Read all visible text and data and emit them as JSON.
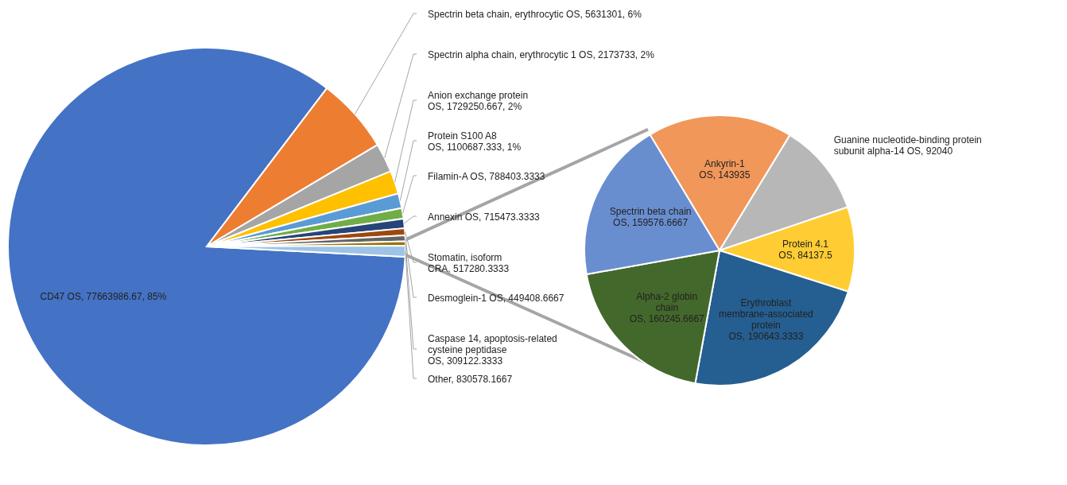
{
  "chart_data": [
    {
      "type": "pie",
      "categories": [
        "CD47 OS",
        "Spectrin beta chain, erythrocytic OS",
        "Spectrin alpha chain, erythrocytic 1 OS",
        "Anion exchange protein OS",
        "Protein S100 A8 OS",
        "Filamin-A OS",
        "Annexin OS",
        "Stomatin, isoform CRA",
        "Desmoglein-1 OS",
        "Caspase 14, apoptosis-related cysteine peptidase OS",
        "Other"
      ],
      "values": [
        77663986.67,
        5631301,
        2173733,
        1729250.667,
        1100687.333,
        788403.3333,
        715473.3333,
        517280.3333,
        449408.6667,
        309122.3333,
        830578.1667
      ],
      "value_labels": [
        "77663986.67, 85%",
        "5631301, 6%",
        "2173733, 2%",
        "1729250.667, 2%",
        "1100687.333, 1%",
        "788403.3333",
        "715473.3333",
        "517280.3333",
        "449408.6667",
        "309122.3333",
        "830578.1667"
      ],
      "colors": [
        "#4472c4",
        "#ed7d31",
        "#a5a5a5",
        "#ffc000",
        "#5b9bd5",
        "#70ad47",
        "#264478",
        "#9e480e",
        "#636363",
        "#997300",
        "#9dc3e6"
      ]
    },
    {
      "type": "pie",
      "categories": [
        "Ankyrin-1 OS",
        "Guanine nucleotide-binding protein subunit alpha-14 OS",
        "Protein 4.1 OS",
        "Erythroblast membrane-associated protein OS",
        "Alpha-2 globin chain OS",
        "Spectrin beta chain OS"
      ],
      "values": [
        143935,
        92040,
        84137.5,
        190643.3333,
        160245.6667,
        159576.6667
      ],
      "value_labels": [
        "143935",
        "92040",
        "84137.5",
        "190643.3333",
        "160245.6667",
        "159576.6667"
      ],
      "colors": [
        "#f1975a",
        "#b7b7b7",
        "#ffcd33",
        "#255e91",
        "#43682b",
        "#698ed0"
      ]
    }
  ]
}
